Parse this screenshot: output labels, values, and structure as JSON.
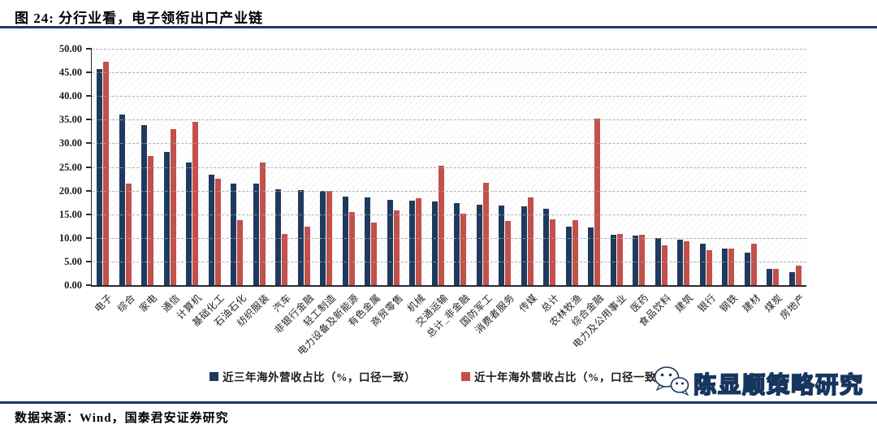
{
  "header": {
    "title": "图 24:  分行业看，电子领衔出口产业链"
  },
  "footer": {
    "source": "数据来源：Wind，国泰君安证券研究"
  },
  "watermark": {
    "text": "陈显顺策略研究",
    "icon": "wechat-icon"
  },
  "colors": {
    "accent_navy": "#1B3A6B",
    "bar_blue": "#1F3A5F",
    "bar_red": "#C2504B",
    "grid_gray": "#A6A6A6",
    "axis_dark": "#2A2A33"
  },
  "chart_data": {
    "type": "bar",
    "title": "图 24:  分行业看，电子领衔出口产业链",
    "categories": [
      "电子",
      "综合",
      "家电",
      "通信",
      "计算机",
      "基础化工",
      "石油石化",
      "纺织服装",
      "汽车",
      "非银行金融",
      "轻工制造",
      "电力设备及新能源",
      "有色金属",
      "商贸零售",
      "机械",
      "交通运输",
      "总计_非金融",
      "国防军工",
      "消费者服务",
      "传媒",
      "总计",
      "农林牧渔",
      "综合金融",
      "电力及公用事业",
      "医药",
      "食品饮料",
      "建筑",
      "银行",
      "钢铁",
      "建材",
      "煤炭",
      "房地产"
    ],
    "series": [
      {
        "name": "近三年海外营收占比（%，口径一致）",
        "color": "#1F3A5F",
        "values": [
          45.7,
          36.0,
          33.8,
          28.1,
          25.9,
          23.4,
          21.5,
          21.4,
          20.2,
          20.1,
          20.0,
          18.7,
          18.5,
          18.1,
          17.8,
          17.7,
          17.3,
          17.0,
          16.8,
          16.7,
          16.1,
          12.3,
          12.2,
          10.6,
          10.4,
          9.9,
          9.6,
          8.7,
          7.8,
          6.8,
          3.4,
          2.7
        ]
      },
      {
        "name": "近十年海外营收占比（%，口径一致）",
        "color": "#C2504B",
        "values": [
          47.3,
          21.4,
          27.3,
          33.0,
          34.5,
          22.5,
          13.8,
          26.0,
          10.9,
          12.4,
          20.0,
          15.4,
          13.2,
          15.8,
          18.4,
          25.2,
          15.2,
          21.7,
          13.5,
          18.5,
          13.9,
          13.7,
          35.2,
          10.8,
          10.6,
          8.4,
          9.2,
          7.4,
          7.7,
          8.8,
          3.4,
          4.1
        ]
      }
    ],
    "xlabel": "",
    "ylabel": "",
    "ylim": [
      0,
      50
    ],
    "ytick_step": 5,
    "yticks": [
      "0.00",
      "5.00",
      "10.00",
      "15.00",
      "20.00",
      "25.00",
      "30.00",
      "35.00",
      "40.00",
      "45.00",
      "50.00"
    ],
    "grid": "horizontal dash-dot",
    "plot_background": "diagonal-hatch",
    "legend_position": "bottom-center"
  }
}
